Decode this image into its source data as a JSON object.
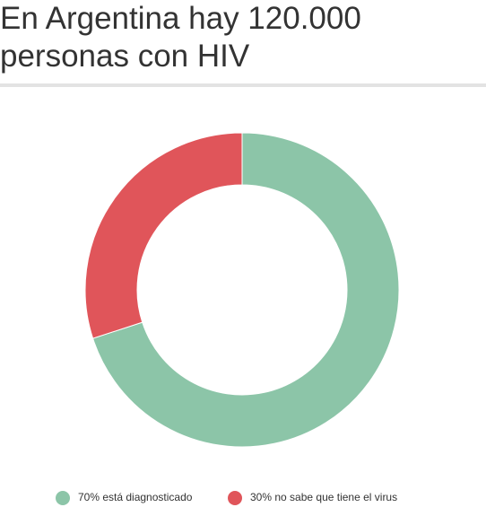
{
  "chart_data": {
    "type": "donut",
    "title": "En Argentina hay 120.000 personas con HIV",
    "categories": [
      "70% está diagnosticado",
      "30% no sabe que tiene el virus"
    ],
    "values": [
      70,
      30
    ],
    "colors": [
      "#8cc5a8",
      "#e0555a"
    ]
  }
}
